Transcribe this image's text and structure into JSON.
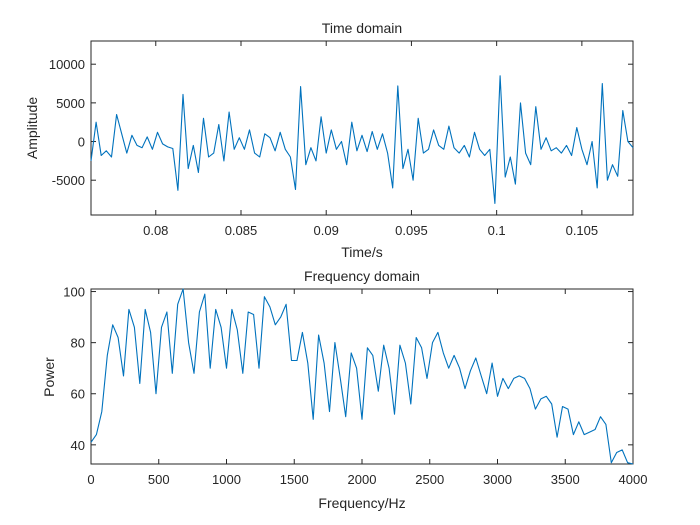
{
  "colors": {
    "series": "#0072bd",
    "axis": "#262626",
    "background": "#ffffff"
  },
  "chart_data": [
    {
      "type": "line",
      "title": "Time domain",
      "xlabel": "Time/s",
      "ylabel": "Amplitude",
      "xlim": [
        0.0762,
        0.108
      ],
      "ylim": [
        -9500,
        13000
      ],
      "xticks": [
        0.08,
        0.085,
        0.09,
        0.095,
        0.1,
        0.105
      ],
      "xtick_labels": [
        "0.08",
        "0.085",
        "0.09",
        "0.095",
        "0.1",
        "0.105"
      ],
      "yticks": [
        -5000,
        0,
        5000,
        10000
      ],
      "ytick_labels": [
        "-5000",
        "0",
        "5000",
        "10000"
      ],
      "grid": false,
      "series": [
        {
          "x": [
            0.0762,
            0.0765,
            0.0768,
            0.0771,
            0.0774,
            0.0777,
            0.078,
            0.0783,
            0.0786,
            0.0789,
            0.0792,
            0.0795,
            0.0798,
            0.0801,
            0.0804,
            0.0807,
            0.081,
            0.0813,
            0.0816,
            0.0819,
            0.0822,
            0.0825,
            0.0828,
            0.0831,
            0.0834,
            0.0837,
            0.084,
            0.0843,
            0.0846,
            0.0849,
            0.0852,
            0.0855,
            0.0858,
            0.0861,
            0.0864,
            0.0867,
            0.087,
            0.0873,
            0.0876,
            0.0879,
            0.0882,
            0.0885,
            0.0888,
            0.0891,
            0.0894,
            0.0897,
            0.09,
            0.0903,
            0.0906,
            0.0909,
            0.0912,
            0.0915,
            0.0918,
            0.0921,
            0.0924,
            0.0927,
            0.093,
            0.0933,
            0.0936,
            0.0939,
            0.0942,
            0.0945,
            0.0948,
            0.0951,
            0.0954,
            0.0957,
            0.096,
            0.0963,
            0.0966,
            0.0969,
            0.0972,
            0.0975,
            0.0978,
            0.0981,
            0.0984,
            0.0987,
            0.099,
            0.0993,
            0.0996,
            0.0999,
            0.1002,
            0.1005,
            0.1008,
            0.1011,
            0.1014,
            0.1017,
            0.102,
            0.1023,
            0.1026,
            0.1029,
            0.1032,
            0.1035,
            0.1038,
            0.1041,
            0.1044,
            0.1047,
            0.105,
            0.1053,
            0.1056,
            0.1059,
            0.1062,
            0.1065,
            0.1068,
            0.1071,
            0.1074,
            0.1077,
            0.108
          ],
          "y": [
            -2500,
            2500,
            -1800,
            -1200,
            -2000,
            3500,
            1000,
            -1500,
            800,
            -500,
            -800,
            600,
            -1000,
            1200,
            -300,
            -700,
            -900,
            -6300,
            6100,
            -3500,
            -500,
            -4000,
            3000,
            -2000,
            -1500,
            2200,
            -2500,
            3800,
            -1000,
            500,
            -1000,
            1500,
            -1500,
            -2000,
            1000,
            500,
            -1200,
            1200,
            -1000,
            -2000,
            -6200,
            7100,
            -3000,
            -800,
            -2500,
            3200,
            -1500,
            1500,
            -1000,
            0,
            -3000,
            2500,
            -1200,
            800,
            -1300,
            1300,
            -1000,
            1000,
            -1500,
            -6000,
            7200,
            -3500,
            -1000,
            -5000,
            3000,
            -1500,
            -1000,
            1500,
            -500,
            -1000,
            2000,
            -800,
            -1500,
            -500,
            -2000,
            1200,
            -1000,
            -1800,
            -1000,
            -8000,
            8500,
            -4600,
            -2000,
            -5500,
            5000,
            -1500,
            -3000,
            4500,
            -1000,
            500,
            -1200,
            -800,
            -1500,
            -500,
            -1800,
            1800,
            -1000,
            -3000,
            0,
            -6000,
            7500,
            -5000,
            -3000,
            -4500,
            4000,
            0,
            -800
          ]
        }
      ]
    },
    {
      "type": "line",
      "title": "Frequency domain",
      "xlabel": "Frequency/Hz",
      "ylabel": "Power",
      "xlim": [
        0,
        4000
      ],
      "ylim": [
        32.5,
        101
      ],
      "xticks": [
        0,
        500,
        1000,
        1500,
        2000,
        2500,
        3000,
        3500,
        4000
      ],
      "xtick_labels": [
        "0",
        "500",
        "1000",
        "1500",
        "2000",
        "2500",
        "3000",
        "3500",
        "4000"
      ],
      "yticks": [
        40,
        60,
        80,
        100
      ],
      "ytick_labels": [
        "40",
        "60",
        "80",
        "100"
      ],
      "grid": false,
      "series": [
        {
          "x": [
            0,
            40,
            80,
            120,
            160,
            200,
            240,
            280,
            320,
            360,
            400,
            440,
            480,
            520,
            560,
            600,
            640,
            680,
            720,
            760,
            800,
            840,
            880,
            920,
            960,
            1000,
            1040,
            1080,
            1120,
            1160,
            1200,
            1240,
            1280,
            1320,
            1360,
            1400,
            1440,
            1480,
            1520,
            1560,
            1600,
            1640,
            1680,
            1720,
            1760,
            1800,
            1840,
            1880,
            1920,
            1960,
            2000,
            2040,
            2080,
            2120,
            2160,
            2200,
            2240,
            2280,
            2320,
            2360,
            2400,
            2440,
            2480,
            2520,
            2560,
            2600,
            2640,
            2680,
            2720,
            2760,
            2800,
            2840,
            2880,
            2920,
            2960,
            3000,
            3040,
            3080,
            3120,
            3160,
            3200,
            3240,
            3280,
            3320,
            3360,
            3400,
            3440,
            3480,
            3520,
            3560,
            3600,
            3640,
            3680,
            3720,
            3760,
            3800,
            3840,
            3880,
            3920,
            3960,
            4000
          ],
          "y": [
            41,
            44,
            53,
            75,
            87,
            82,
            67,
            93,
            86,
            64,
            93,
            84,
            60,
            86,
            92,
            68,
            95,
            101,
            80,
            68,
            92,
            99,
            70,
            93,
            86,
            70,
            93,
            85,
            68,
            92,
            91,
            70,
            98,
            94,
            87,
            90,
            95,
            73,
            73,
            84,
            72,
            50,
            83,
            72,
            53,
            80,
            66,
            51,
            76,
            70,
            50,
            78,
            75,
            61,
            79,
            70,
            52,
            79,
            72,
            56,
            82,
            78,
            66,
            80,
            84,
            76,
            70,
            75,
            70,
            62,
            69,
            74,
            67,
            60,
            72,
            59,
            66,
            62,
            66,
            67,
            66,
            62,
            54,
            58,
            59,
            56,
            43,
            55,
            54,
            44,
            49,
            44,
            45,
            46,
            51,
            48,
            33,
            37,
            38,
            33,
            32
          ]
        }
      ]
    }
  ]
}
